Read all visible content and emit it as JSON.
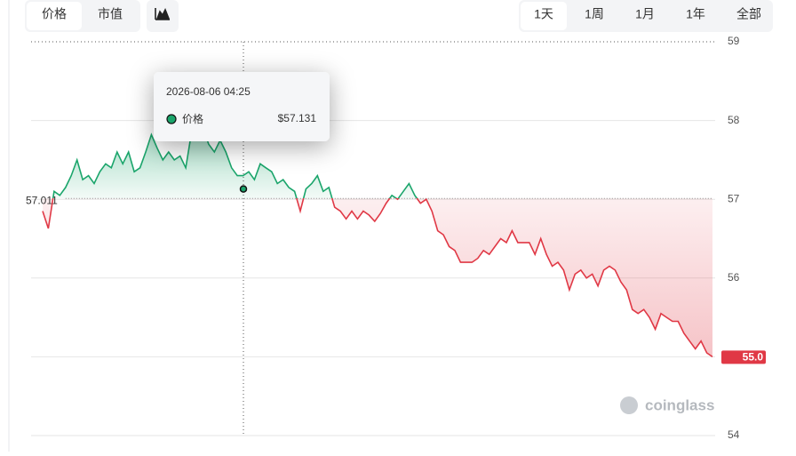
{
  "tabs": [
    "价格",
    "市值"
  ],
  "ranges": [
    "1天",
    "1周",
    "1月",
    "1年",
    "全部"
  ],
  "watermark": "coinglass",
  "chart_data": {
    "type": "line",
    "baseline": 57.011,
    "last_label": "55.0",
    "tooltip": {
      "time": "2026-08-06 04:25",
      "series": "价格",
      "value": 57.131,
      "value_label": "$57.131"
    },
    "up_color": "#1aa56b",
    "down_color": "#e03845",
    "values": [
      56.85,
      56.63,
      57.1,
      57.05,
      57.15,
      57.3,
      57.5,
      57.25,
      57.3,
      57.2,
      57.35,
      57.45,
      57.4,
      57.6,
      57.45,
      57.6,
      57.35,
      57.4,
      57.6,
      57.82,
      57.65,
      57.5,
      57.6,
      57.5,
      57.55,
      57.4,
      57.85,
      57.95,
      57.9,
      57.7,
      57.6,
      57.75,
      57.6,
      57.4,
      57.3,
      57.3,
      57.35,
      57.25,
      57.45,
      57.4,
      57.35,
      57.2,
      57.25,
      57.15,
      57.1,
      56.85,
      57.131,
      57.2,
      57.3,
      57.1,
      57.15,
      56.9,
      56.85,
      56.75,
      56.85,
      56.75,
      56.85,
      56.8,
      56.72,
      56.82,
      56.95,
      57.05,
      57.0,
      57.1,
      57.2,
      57.05,
      56.95,
      57.0,
      56.85,
      56.6,
      56.55,
      56.4,
      56.35,
      56.2,
      56.2,
      56.2,
      56.25,
      56.35,
      56.3,
      56.4,
      56.5,
      56.45,
      56.6,
      56.45,
      56.45,
      56.45,
      56.3,
      56.5,
      56.3,
      56.15,
      56.2,
      56.1,
      55.85,
      56.05,
      56.1,
      56.0,
      56.05,
      55.9,
      56.1,
      56.15,
      56.1,
      55.95,
      55.85,
      55.6,
      55.55,
      55.6,
      55.5,
      55.35,
      55.55,
      55.5,
      55.45,
      55.45,
      55.3,
      55.2,
      55.1,
      55.2,
      55.05,
      55.0
    ],
    "ylim": [
      54,
      59
    ],
    "yticks": [
      54,
      55,
      56,
      57,
      58,
      59
    ],
    "grid": true
  }
}
